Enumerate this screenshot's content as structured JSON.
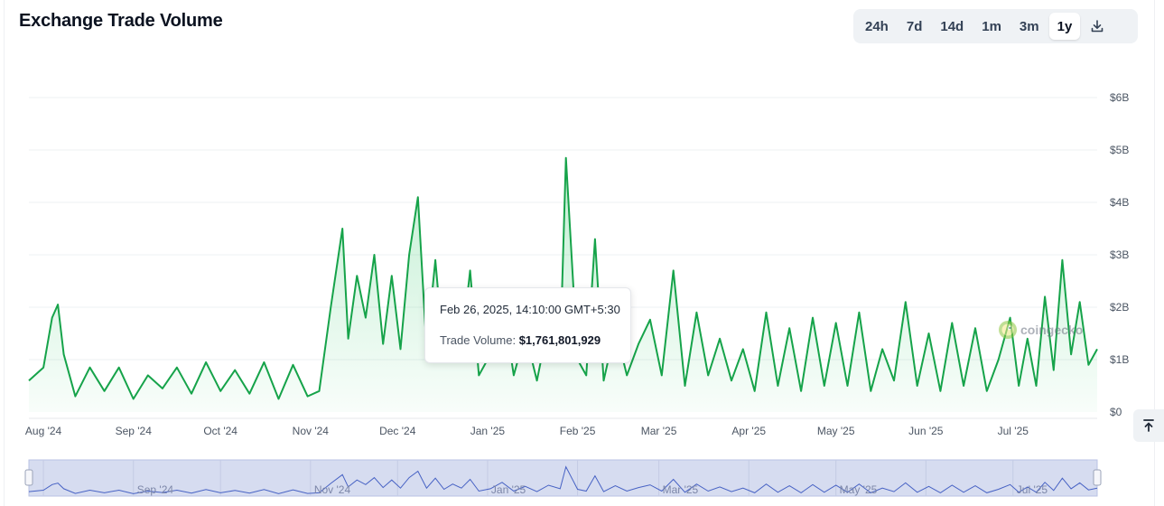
{
  "header": {
    "title": "Exchange Trade Volume",
    "ranges": [
      "24h",
      "7d",
      "14d",
      "1m",
      "3m",
      "1y"
    ],
    "active_range": "1y",
    "download_icon": "download-icon"
  },
  "tooltip": {
    "date": "Feb 26, 2025, 14:10:00 GMT+5:30",
    "label": "Trade Volume:",
    "value": "$1,761,801,929"
  },
  "watermark": {
    "text": "coingecko",
    "icon": "gecko-logo-icon"
  },
  "back_to_top_icon": "arrow-up-to-line-icon",
  "colors": {
    "line": "#16a34a",
    "area": "#22c55e",
    "navigator_line": "#4762c4",
    "navigator_fill": "#d6dcf0"
  },
  "chart_data": {
    "type": "area",
    "y_tick_labels": [
      "$0",
      "$1B",
      "$2B",
      "$3B",
      "$4B",
      "$5B",
      "$6B"
    ],
    "ylim": [
      0,
      6000000000
    ],
    "x_tick_labels": [
      "Aug '24",
      "Sep '24",
      "Oct '24",
      "Nov '24",
      "Dec '24",
      "Jan '25",
      "Feb '25",
      "Mar '25",
      "Apr '25",
      "May '25",
      "Jun '25",
      "Jul '25"
    ],
    "navigator_labels": [
      "Sep '24",
      "Nov '24",
      "Jan '25",
      "Mar '25",
      "May '25",
      "Jul '25"
    ],
    "x_range": [
      "2024-07-27",
      "2025-07-30"
    ],
    "grid": true,
    "series": [
      {
        "name": "Trade Volume",
        "x": [
          "2024-07-27",
          "2024-08-01",
          "2024-08-04",
          "2024-08-06",
          "2024-08-08",
          "2024-08-12",
          "2024-08-17",
          "2024-08-22",
          "2024-08-27",
          "2024-09-01",
          "2024-09-06",
          "2024-09-11",
          "2024-09-16",
          "2024-09-21",
          "2024-09-26",
          "2024-10-01",
          "2024-10-06",
          "2024-10-11",
          "2024-10-16",
          "2024-10-21",
          "2024-10-26",
          "2024-10-31",
          "2024-11-04",
          "2024-11-08",
          "2024-11-12",
          "2024-11-14",
          "2024-11-17",
          "2024-11-20",
          "2024-11-23",
          "2024-11-26",
          "2024-11-29",
          "2024-12-02",
          "2024-12-05",
          "2024-12-08",
          "2024-12-11",
          "2024-12-14",
          "2024-12-17",
          "2024-12-20",
          "2024-12-23",
          "2024-12-26",
          "2024-12-29",
          "2025-01-02",
          "2025-01-06",
          "2025-01-10",
          "2025-01-14",
          "2025-01-18",
          "2025-01-22",
          "2025-01-26",
          "2025-01-28",
          "2025-02-01",
          "2025-02-04",
          "2025-02-07",
          "2025-02-10",
          "2025-02-14",
          "2025-02-18",
          "2025-02-22",
          "2025-02-26",
          "2025-03-02",
          "2025-03-06",
          "2025-03-10",
          "2025-03-14",
          "2025-03-18",
          "2025-03-22",
          "2025-03-26",
          "2025-03-30",
          "2025-04-03",
          "2025-04-07",
          "2025-04-11",
          "2025-04-15",
          "2025-04-19",
          "2025-04-23",
          "2025-04-27",
          "2025-05-01",
          "2025-05-05",
          "2025-05-09",
          "2025-05-13",
          "2025-05-17",
          "2025-05-21",
          "2025-05-25",
          "2025-05-29",
          "2025-06-02",
          "2025-06-06",
          "2025-06-10",
          "2025-06-14",
          "2025-06-18",
          "2025-06-22",
          "2025-06-26",
          "2025-06-30",
          "2025-07-03",
          "2025-07-06",
          "2025-07-09",
          "2025-07-12",
          "2025-07-15",
          "2025-07-18",
          "2025-07-21",
          "2025-07-24",
          "2025-07-27",
          "2025-07-30"
        ],
        "y": [
          600000000,
          850000000,
          1800000000,
          2050000000,
          1100000000,
          300000000,
          850000000,
          400000000,
          850000000,
          250000000,
          700000000,
          450000000,
          850000000,
          350000000,
          950000000,
          400000000,
          800000000,
          350000000,
          950000000,
          250000000,
          900000000,
          300000000,
          400000000,
          2000000000,
          3500000000,
          1400000000,
          2600000000,
          1800000000,
          3000000000,
          1300000000,
          2600000000,
          1200000000,
          3000000000,
          4100000000,
          1200000000,
          2900000000,
          1000000000,
          1900000000,
          1200000000,
          2700000000,
          700000000,
          1100000000,
          2200000000,
          700000000,
          1500000000,
          600000000,
          1700000000,
          1100000000,
          4850000000,
          1000000000,
          700000000,
          3300000000,
          600000000,
          1600000000,
          700000000,
          1300000000,
          1761801929,
          700000000,
          2700000000,
          500000000,
          1900000000,
          700000000,
          1400000000,
          600000000,
          1200000000,
          400000000,
          1900000000,
          500000000,
          1600000000,
          400000000,
          1800000000,
          500000000,
          1700000000,
          500000000,
          1900000000,
          400000000,
          1200000000,
          600000000,
          2100000000,
          500000000,
          1500000000,
          400000000,
          1700000000,
          500000000,
          1600000000,
          400000000,
          1000000000,
          1800000000,
          500000000,
          1400000000,
          500000000,
          2200000000,
          800000000,
          2900000000,
          1100000000,
          2100000000,
          900000000,
          1200000000
        ]
      }
    ]
  }
}
